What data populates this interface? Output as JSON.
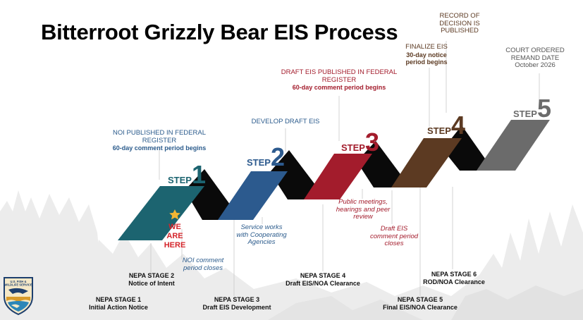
{
  "title": "Bitterroot Grizzly Bear EIS Process",
  "colors": {
    "step1": "#1c6470",
    "step2": "#2c5a8e",
    "step3": "#a31c2c",
    "step4": "#5c3a22",
    "step5": "#6b6b6b",
    "connector": "#0a0a0a",
    "blue_text": "#2b5b8c",
    "red_text": "#a31c2c",
    "brown_text": "#5c3a22",
    "gray_text": "#555555",
    "star": "#f2b534",
    "here_text": "#d5252b"
  },
  "steps": [
    {
      "word": "STEP",
      "number": "1"
    },
    {
      "word": "STEP",
      "number": "2"
    },
    {
      "word": "STEP",
      "number": "3"
    },
    {
      "word": "STEP",
      "number": "4"
    },
    {
      "word": "STEP",
      "number": "5"
    }
  ],
  "milestones": {
    "noi": {
      "title": "NOI PUBLISHED IN FEDERAL REGISTER",
      "sub": "60-day comment period begins"
    },
    "draft_dev": {
      "title": "DEVELOP DRAFT EIS"
    },
    "draft_pub": {
      "title_line1": "DRAFT EIS PUBLISHED IN FEDERAL",
      "title_line2": "REGISTER",
      "sub": "60-day comment period begins"
    },
    "finalize": {
      "title": "FINALIZE EIS",
      "sub_line1": "30-day notice",
      "sub_line2": "period begins"
    },
    "rod": {
      "line1": "RECORD OF",
      "line2": "DECISION IS",
      "line3": "PUBLISHED"
    },
    "court": {
      "line1": "COURT ORDERED",
      "line2": "REMAND DATE",
      "date": "October 2026"
    }
  },
  "here_marker": {
    "line1": "WE",
    "line2": "ARE",
    "line3": "HERE",
    "icon": "star-icon"
  },
  "notes": {
    "noi_close": {
      "line1": "NOI comment",
      "line2": "period closes"
    },
    "service": {
      "line1": "Service works",
      "line2": "with Cooperating",
      "line3": "Agencies"
    },
    "public": {
      "line1": "Public meetings,",
      "line2": "hearings and peer",
      "line3": "review"
    },
    "draft_close": {
      "line1": "Draft EIS",
      "line2": "comment period",
      "line3": "closes"
    }
  },
  "stages": [
    {
      "name": "NEPA STAGE 1",
      "desc": "Initial Action Notice"
    },
    {
      "name": "NEPA STAGE 2",
      "desc": "Notice of Intent"
    },
    {
      "name": "NEPA STAGE 3",
      "desc": "Draft EIS Development"
    },
    {
      "name": "NEPA STAGE 4",
      "desc": "Draft EIS/NOA Clearance"
    },
    {
      "name": "NEPA STAGE 5",
      "desc": "Final EIS/NOA Clearance"
    },
    {
      "name": "NEPA STAGE 6",
      "desc": "ROD/NOA Clearance"
    }
  ],
  "logo": {
    "icon": "usfws-shield-logo",
    "text": "U.S. FISH & WILDLIFE SERVICE"
  }
}
